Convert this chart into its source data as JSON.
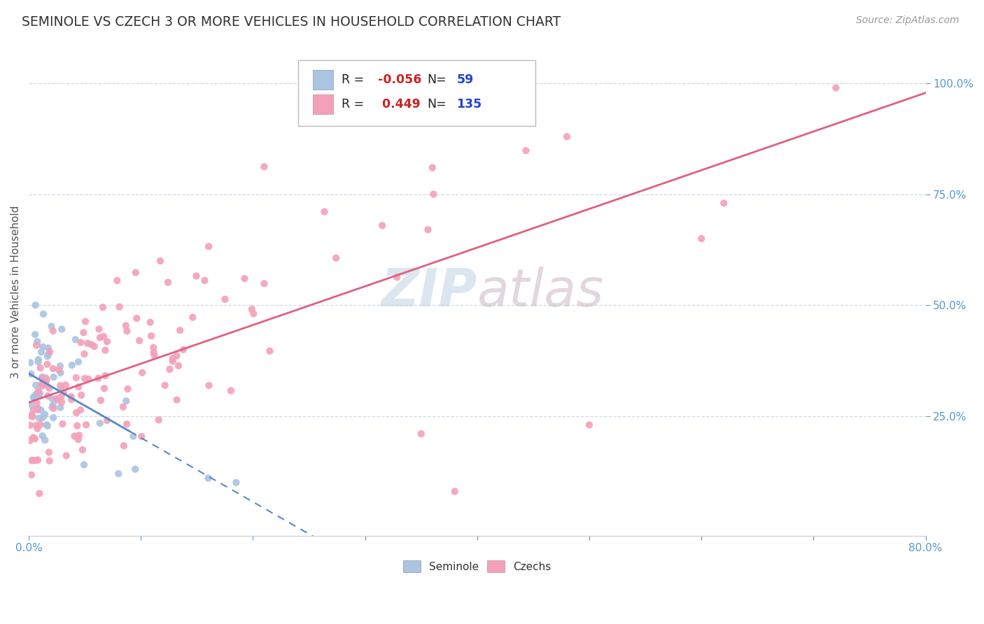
{
  "title": "SEMINOLE VS CZECH 3 OR MORE VEHICLES IN HOUSEHOLD CORRELATION CHART",
  "source": "Source: ZipAtlas.com",
  "ylabel": "3 or more Vehicles in Household",
  "legend_seminole": {
    "R": -0.056,
    "N": 59
  },
  "legend_czechs": {
    "R": 0.449,
    "N": 135
  },
  "watermark": "ZIPatlas",
  "seminole_color": "#aac4e2",
  "czechs_color": "#f4a0b8",
  "seminole_trend_color": "#5588cc",
  "czechs_trend_color": "#e06080",
  "x_min": 0.0,
  "x_max": 0.8,
  "y_min": -0.02,
  "y_max": 1.08,
  "grid_color": "#c8d8e8",
  "tick_color": "#5599cc",
  "title_color": "#333333",
  "source_color": "#999999",
  "ylabel_color": "#555555",
  "background_color": "#ffffff"
}
